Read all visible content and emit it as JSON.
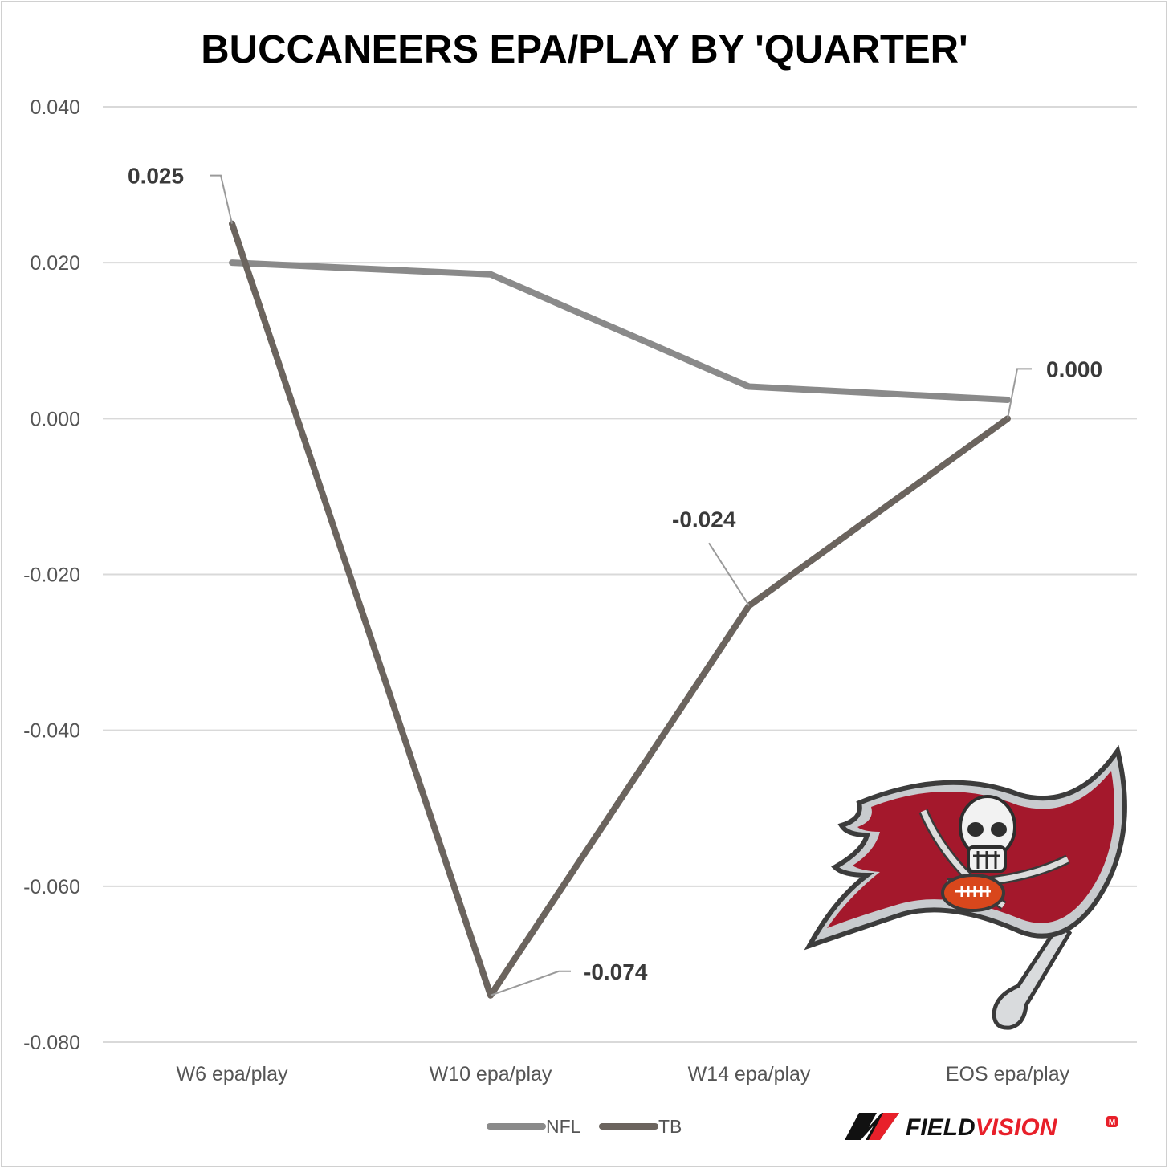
{
  "chart_data": {
    "type": "line",
    "title": "BUCCANEERS EPA/PLAY BY 'QUARTER'",
    "categories": [
      "W6 epa/play",
      "W10 epa/play",
      "W14 epa/play",
      "EOS epa/play"
    ],
    "series": [
      {
        "name": "NFL",
        "values": [
          0.02,
          0.0185,
          0.0041,
          0.0024
        ],
        "color": "#8a8a8a"
      },
      {
        "name": "TB",
        "values": [
          0.025,
          -0.074,
          -0.024,
          0.0
        ],
        "color": "#6b645e"
      }
    ],
    "data_labels": [
      "0.025",
      "-0.074",
      "-0.024",
      "0.000"
    ],
    "y_ticks": [
      "0.040",
      "0.020",
      "0.000",
      "-0.020",
      "-0.040",
      "-0.060",
      "-0.080"
    ],
    "ylim": [
      -0.08,
      0.04
    ],
    "grid": true,
    "legend_position": "bottom"
  },
  "branding": {
    "logo": "buccaneers-flag-logo",
    "wordmark_prefix": "FIELD",
    "wordmark_suffix": "VISION",
    "wordmark_mark": "M",
    "accent_color": "#e8202a",
    "flag_color": "#a4182c"
  }
}
